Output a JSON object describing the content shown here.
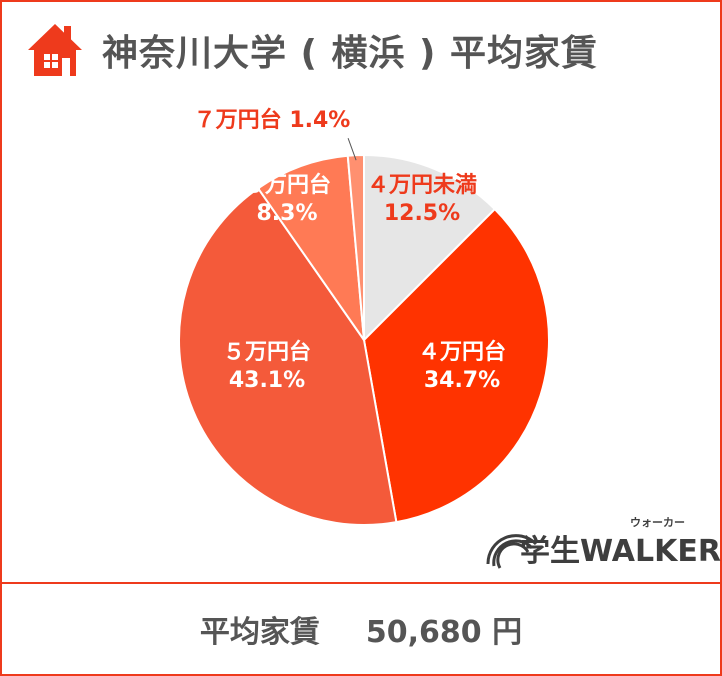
{
  "header": {
    "title": "神奈川大学 ( 横浜 ) 平均家賃",
    "icon": "house-icon"
  },
  "colors": {
    "accent": "#ee3a1c",
    "text_gray": "#555555"
  },
  "chart_data": {
    "type": "pie",
    "start_angle_deg": 0,
    "direction": "clockwise",
    "slices": [
      {
        "category": "４万円未満",
        "value": 12.5,
        "label": "12.5%",
        "color": "#e6e6e6",
        "label_color": "#ee3a1c"
      },
      {
        "category": "４万円台",
        "value": 34.7,
        "label": "34.7%",
        "color": "#ff3300",
        "label_color": "#ffffff"
      },
      {
        "category": "５万円台",
        "value": 43.1,
        "label": "43.1%",
        "color": "#f45a3a",
        "label_color": "#ffffff"
      },
      {
        "category": "６万円台",
        "value": 8.3,
        "label": "8.3%",
        "color": "#ff7a55",
        "label_color": "#ffffff"
      },
      {
        "category": "７万円台",
        "value": 1.4,
        "label": "1.4%",
        "color": "#ff9070",
        "label_color": "#ee3a1c"
      }
    ]
  },
  "logo": {
    "text": "学生WALKER",
    "sub": "ウォーカー"
  },
  "footer": {
    "label": "平均家賃",
    "value": "50,680 円"
  }
}
